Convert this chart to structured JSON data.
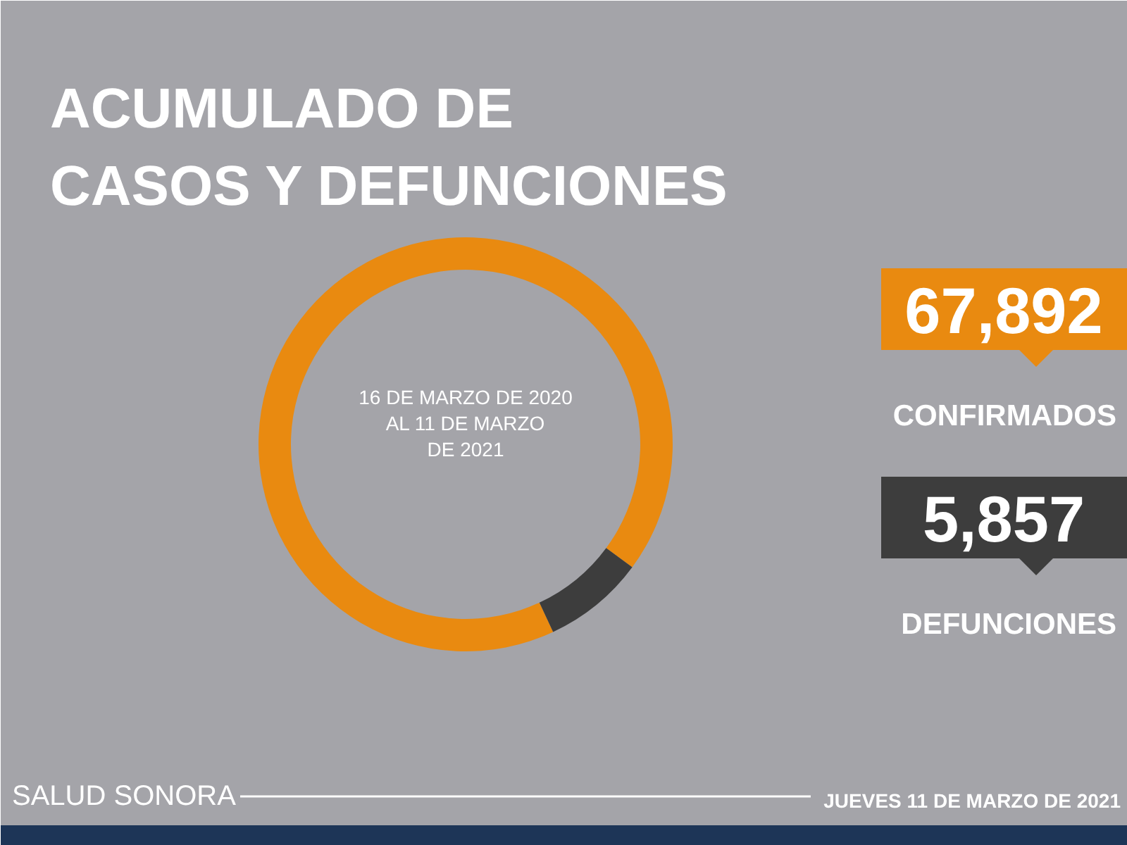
{
  "chart_data": {
    "type": "donut",
    "title": "ACUMULADO DE\nCASOS Y DEFUNCIONES",
    "categories": [
      "CONFIRMADOS",
      "DEFUNCIONES"
    ],
    "values": [
      67892,
      5857
    ],
    "colors": [
      "#e98a10",
      "#3d3d3d"
    ],
    "value_labels": [
      "67,892",
      "5,857"
    ],
    "annotations": [
      "16 DE MARZO DE 2020\nAL 11 DE MARZO\nDE 2021",
      "JUEVES 11 DE MARZO DE 2021",
      "SALUD SONORA"
    ],
    "legend": "right"
  }
}
